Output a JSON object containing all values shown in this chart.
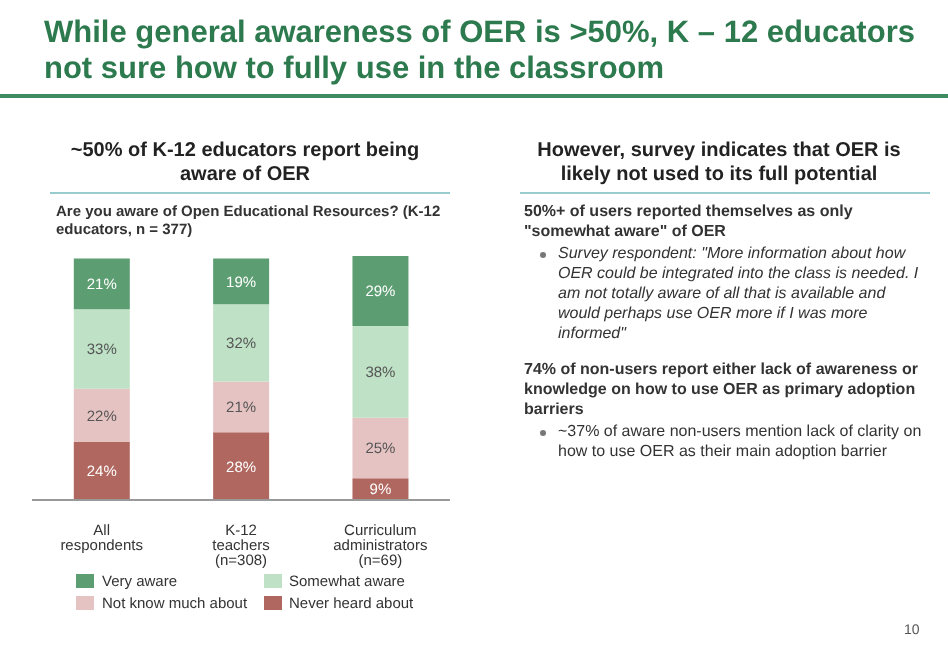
{
  "chart_data": {
    "type": "bar",
    "title": "While general awareness of OER is >50%, K – 12 educators not sure how to fully use in the classroom",
    "subtitle": "~50% of K-12 educators report being aware of OER",
    "categories": [
      "All respondents",
      "K-12 teachers (n=308)",
      "Curriculum administrators (n=69)"
    ],
    "stacked": true,
    "legend": "bottom",
    "series": [
      {
        "name": "Never heard about",
        "color": "#b0675f",
        "values": [
          24,
          28,
          9
        ],
        "value_labels": [
          "24%",
          "28%",
          "9%"
        ]
      },
      {
        "name": "Not know much about",
        "color": "#e6c3c3",
        "values": [
          22,
          21,
          25
        ],
        "value_labels": [
          "22%",
          "21%",
          "25%"
        ]
      },
      {
        "name": "Somewhat aware",
        "color": "#bfe1c5",
        "values": [
          33,
          32,
          38
        ],
        "value_labels": [
          "33%",
          "32%",
          "38%"
        ]
      },
      {
        "name": "Very aware",
        "color": "#5c9e72",
        "values": [
          21,
          19,
          29
        ],
        "value_labels": [
          "21%",
          "19%",
          "29%"
        ]
      }
    ],
    "annotations": [
      "Are you aware of Open Educational Resources? (K-12 educators, n = 377)",
      "However, survey indicates that OER is likely not used to its full potential",
      "50%+ of users reported themselves as only \"somewhat aware\" of OER",
      "Survey respondent: \"More information about how OER could be integrated into the class is needed. I am not totally aware of all that is available and would perhaps use OER more if I was more informed\"",
      "74% of non-users report either lack of awareness or knowledge on how to use OER as primary adoption barriers",
      "~37% of aware non-users mention lack of clarity on how to use OER as their main adoption barrier",
      "10"
    ]
  }
}
